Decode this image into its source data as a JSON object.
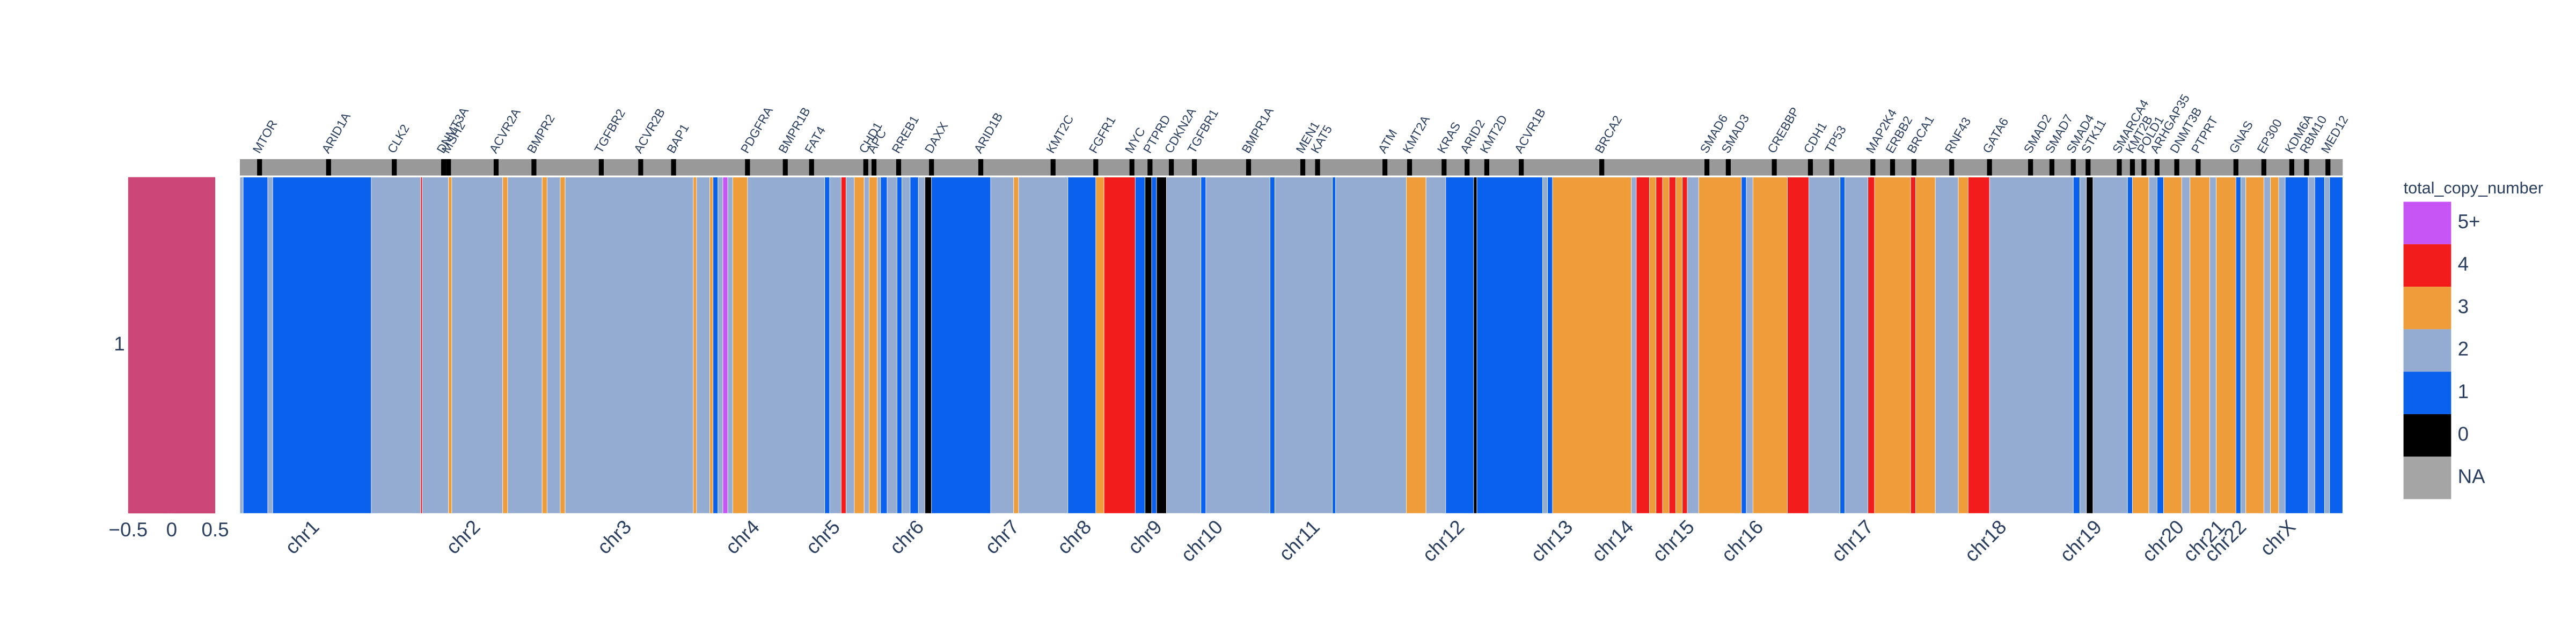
{
  "chart_data": [
    {
      "type": "single-cell",
      "y_categories": [
        "1"
      ],
      "xlim": [
        -0.5,
        0.5
      ],
      "xticks": [
        {
          "value": -0.5,
          "label": "−0.5"
        },
        0,
        0.5
      ],
      "color": "#cc4778"
    },
    {
      "type": "segment-heatmap",
      "legend_title": "total_copy_number",
      "legend": [
        {
          "value": 5,
          "label": "5+",
          "color": "#c755f5"
        },
        {
          "value": 4,
          "label": "4",
          "color": "#f21c1c"
        },
        {
          "value": 3,
          "label": "3",
          "color": "#ef9c3b"
        },
        {
          "value": 2,
          "label": "2",
          "color": "#94abd2"
        },
        {
          "value": 1,
          "label": "1",
          "color": "#0a61ee"
        },
        {
          "value": 0,
          "label": "0",
          "color": "#000000"
        },
        {
          "value": null,
          "label": "NA",
          "color": "#a5a5a5"
        }
      ],
      "xlim": [
        0,
        1280
      ],
      "x0": [
        0,
        2,
        17,
        20,
        80,
        110,
        111,
        127,
        129,
        160,
        163,
        184,
        187,
        195,
        198,
        276,
        278,
        286,
        288,
        291,
        294,
        297,
        300,
        309,
        356,
        359,
        366,
        369,
        374,
        380,
        383,
        388,
        390,
        394,
        400,
        403,
        408,
        413,
        417,
        421,
        457,
        471,
        474,
        504,
        521,
        526,
        545,
        551,
        555,
        558,
        564,
        585,
        588,
        627,
        630,
        665,
        667,
        710,
        722,
        734,
        751,
        753,
        793,
        796,
        799,
        847,
        850,
        858,
        862,
        866,
        870,
        874,
        878,
        881,
        888,
        914,
        917,
        921,
        942,
        955,
        974,
        977,
        991,
        995,
        1017,
        1020,
        1032,
        1046,
        1052,
        1065,
        1116,
        1120,
        1124,
        1128,
        1149,
        1152,
        1162,
        1167,
        1171,
        1182,
        1187,
        1199,
        1203,
        1215,
        1218,
        1221,
        1232,
        1236,
        1241,
        1245,
        1259,
        1263,
        1269,
        1272
      ],
      "x1": [
        2,
        17,
        20,
        80,
        110,
        111,
        127,
        129,
        160,
        163,
        184,
        187,
        195,
        198,
        276,
        278,
        286,
        288,
        291,
        294,
        297,
        300,
        309,
        356,
        359,
        366,
        369,
        374,
        380,
        383,
        388,
        390,
        394,
        400,
        403,
        408,
        413,
        417,
        421,
        457,
        471,
        474,
        504,
        521,
        526,
        545,
        551,
        555,
        558,
        564,
        585,
        588,
        627,
        630,
        665,
        667,
        710,
        722,
        734,
        751,
        753,
        793,
        796,
        799,
        847,
        850,
        858,
        862,
        866,
        870,
        874,
        878,
        881,
        888,
        914,
        917,
        921,
        942,
        955,
        974,
        977,
        991,
        995,
        1017,
        1020,
        1032,
        1046,
        1052,
        1065,
        1116,
        1120,
        1124,
        1128,
        1149,
        1152,
        1162,
        1167,
        1171,
        1182,
        1187,
        1199,
        1203,
        1215,
        1218,
        1221,
        1232,
        1236,
        1241,
        1245,
        1259,
        1263,
        1269,
        1272,
        1280
      ],
      "values": [
        2,
        1,
        2,
        1,
        2,
        4,
        2,
        3,
        2,
        3,
        2,
        3,
        2,
        3,
        2,
        3,
        2,
        3,
        1,
        2,
        5,
        2,
        3,
        2,
        1,
        2,
        4,
        2,
        3,
        2,
        3,
        2,
        1,
        2,
        1,
        2,
        1,
        2,
        0,
        1,
        2,
        3,
        2,
        1,
        3,
        4,
        1,
        0,
        1,
        0,
        2,
        1,
        2,
        1,
        2,
        1,
        2,
        3,
        2,
        1,
        0,
        1,
        2,
        1,
        3,
        2,
        4,
        3,
        4,
        3,
        4,
        3,
        4,
        2,
        3,
        1,
        2,
        3,
        4,
        2,
        1,
        2,
        4,
        3,
        4,
        3,
        2,
        3,
        4,
        2,
        1,
        2,
        0,
        2,
        1,
        3,
        2,
        1,
        3,
        2,
        3,
        2,
        3,
        1,
        2,
        3,
        2,
        3,
        2,
        1,
        2,
        1,
        2,
        1
      ],
      "chromosomes": [
        "chr1",
        "chr2",
        "chr3",
        "chr4",
        "chr5",
        "chr6",
        "chr7",
        "chr8",
        "chr9",
        "chr10",
        "chr11",
        "chr12",
        "chr13",
        "chr14",
        "chr15",
        "chr16",
        "chr17",
        "chr18",
        "chr19",
        "chr20",
        "chr21",
        "chr22",
        "chrX"
      ],
      "chromosome_positions": [
        49,
        147,
        239,
        317,
        366,
        417,
        475,
        519,
        562,
        599,
        658,
        746,
        812,
        849,
        886,
        928,
        995,
        1076,
        1134,
        1184,
        1209,
        1222,
        1252
      ],
      "genes": [
        "MTOR",
        "ARID1A",
        "CLK2",
        "DNMT3A",
        "MSH2",
        "ACVR2A",
        "BMPR2",
        "TGFBR2",
        "ACVR2B",
        "BAP1",
        "PDGFRA",
        "BMPR1B",
        "FAT4",
        "CHD1",
        "APC",
        "RREB1",
        "DAXX",
        "ARID1B",
        "KMT2C",
        "FGFR1",
        "MYC",
        "PTPRD",
        "CDKN2A",
        "TGFBR1",
        "BMPR1A",
        "MEN1",
        "KAT5",
        "ATM",
        "KMT2A",
        "KRAS",
        "ARID2",
        "KMT2D",
        "ACVR1B",
        "BRCA2",
        "SMAD6",
        "SMAD3",
        "CREBBP",
        "CDH1",
        "TP53",
        "MAP2K4",
        "ERBB2",
        "BRCA1",
        "RNF43",
        "GATA6",
        "SMAD2",
        "SMAD7",
        "SMAD4",
        "STK11",
        "SMARCA4",
        "KMT2B",
        "POLD1",
        "ARHGAP35",
        "DNMT3B",
        "PTPRT",
        "GNAS",
        "EP300",
        "KDM6A",
        "RBM10",
        "MED12"
      ],
      "gene_positions": [
        12,
        54,
        94,
        124,
        127,
        156,
        179,
        220,
        244,
        264,
        309,
        332,
        348,
        381,
        386,
        401,
        421,
        451,
        495,
        521,
        543,
        554,
        567,
        581,
        614,
        647,
        656,
        697,
        712,
        733,
        747,
        759,
        780,
        829,
        893,
        906,
        934,
        956,
        969,
        994,
        1006,
        1019,
        1042,
        1065,
        1090,
        1103,
        1116,
        1125,
        1144,
        1152,
        1159,
        1167,
        1179,
        1192,
        1215,
        1232,
        1249,
        1258,
        1271
      ]
    }
  ]
}
